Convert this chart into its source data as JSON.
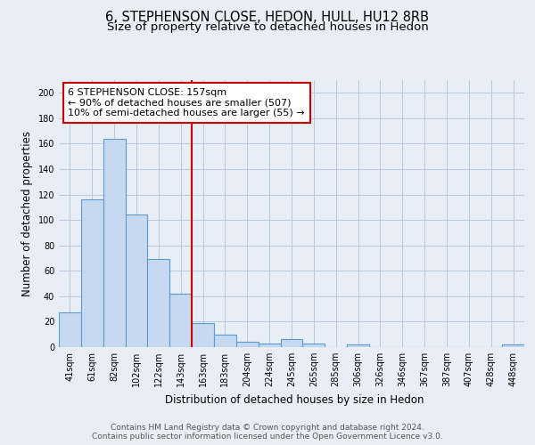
{
  "title": "6, STEPHENSON CLOSE, HEDON, HULL, HU12 8RB",
  "subtitle": "Size of property relative to detached houses in Hedon",
  "xlabel": "Distribution of detached houses by size in Hedon",
  "ylabel": "Number of detached properties",
  "bar_labels": [
    "41sqm",
    "61sqm",
    "82sqm",
    "102sqm",
    "122sqm",
    "143sqm",
    "163sqm",
    "183sqm",
    "204sqm",
    "224sqm",
    "245sqm",
    "265sqm",
    "285sqm",
    "306sqm",
    "326sqm",
    "346sqm",
    "367sqm",
    "387sqm",
    "407sqm",
    "428sqm",
    "448sqm"
  ],
  "bar_values": [
    27,
    116,
    164,
    104,
    69,
    42,
    19,
    10,
    4,
    3,
    6,
    3,
    0,
    2,
    0,
    0,
    0,
    0,
    0,
    0,
    2
  ],
  "bar_color": "#c6d9f0",
  "bar_edge_color": "#5b9bd5",
  "vline_color": "#cc0000",
  "annotation_box_text": "6 STEPHENSON CLOSE: 157sqm\n← 90% of detached houses are smaller (507)\n10% of semi-detached houses are larger (55) →",
  "ylim": [
    0,
    210
  ],
  "yticks": [
    0,
    20,
    40,
    60,
    80,
    100,
    120,
    140,
    160,
    180,
    200
  ],
  "background_color": "#e8eef5",
  "footer_line1": "Contains HM Land Registry data © Crown copyright and database right 2024.",
  "footer_line2": "Contains public sector information licensed under the Open Government Licence v3.0.",
  "title_fontsize": 10.5,
  "subtitle_fontsize": 9.5,
  "axis_label_fontsize": 8.5,
  "tick_fontsize": 7,
  "annotation_fontsize": 8,
  "footer_fontsize": 6.5
}
